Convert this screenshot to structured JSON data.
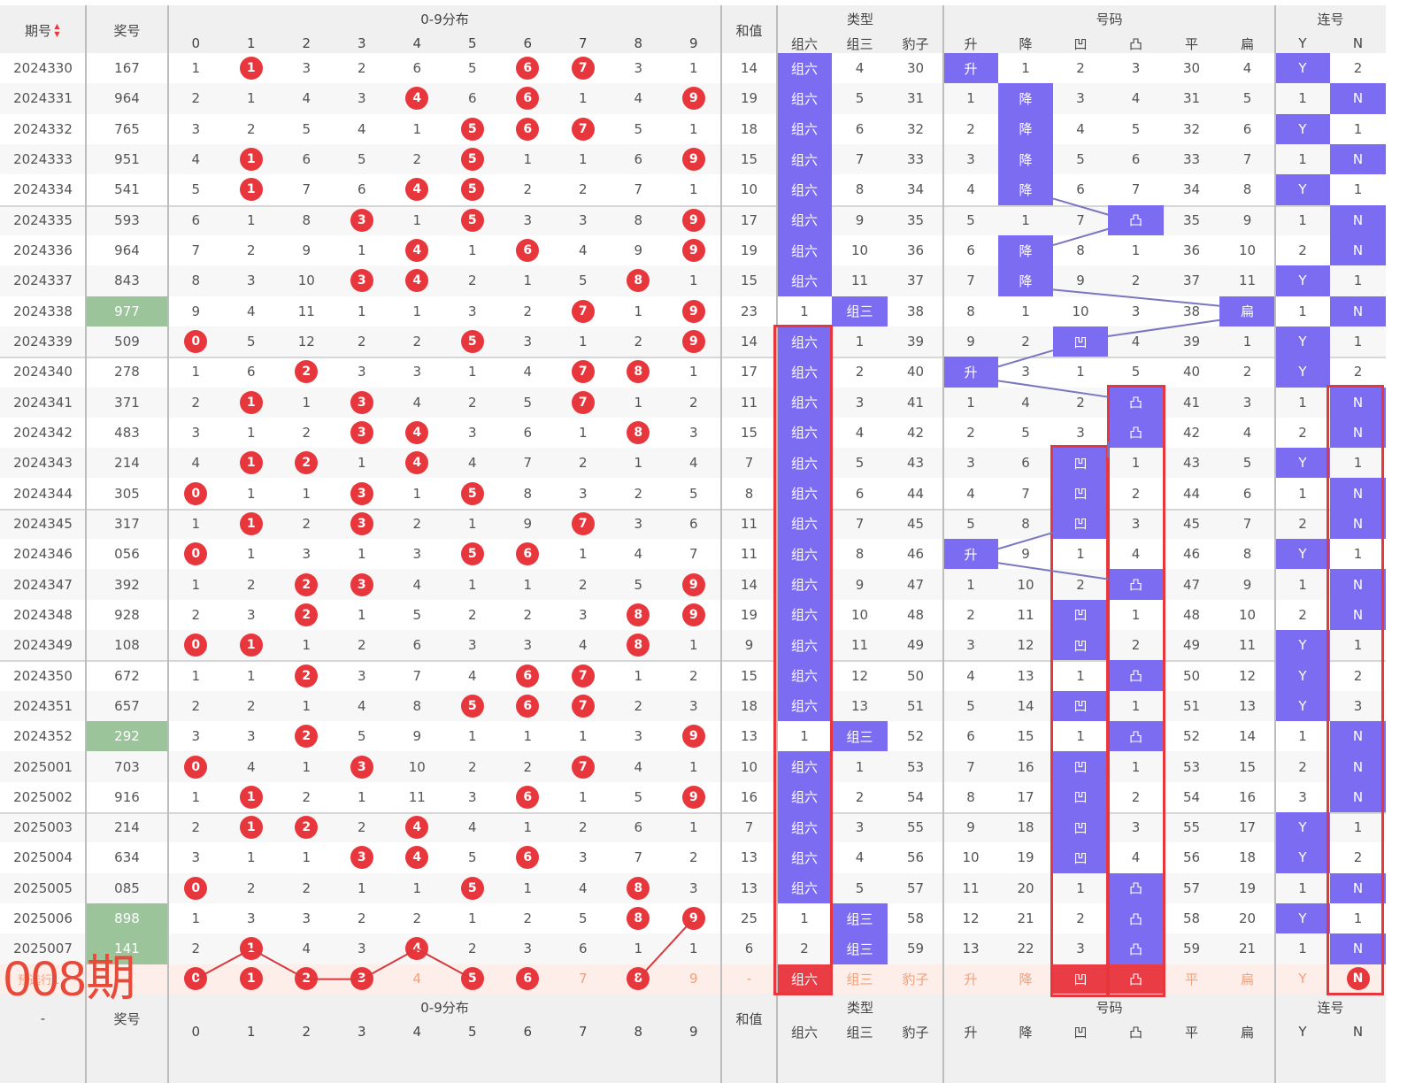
{
  "header": {
    "period": "期号",
    "prize": "奖号",
    "dist": "0-9分布",
    "sum": "和值",
    "type": "类型",
    "code": "号码",
    "consec": "连号",
    "digits": [
      "0",
      "1",
      "2",
      "3",
      "4",
      "5",
      "6",
      "7",
      "8",
      "9"
    ],
    "type_cols": [
      "组六",
      "组三",
      "豹子"
    ],
    "code_cols": [
      "升",
      "降",
      "凹",
      "凸",
      "平",
      "扁"
    ],
    "consec_cols": [
      "Y",
      "N"
    ]
  },
  "footer": {
    "period": "-",
    "prize": "奖号",
    "dist": "0-9分布",
    "sum": "和值",
    "type": "类型",
    "code": "号码",
    "consec": "连号"
  },
  "overlay_label": "008期",
  "forecast_row": {
    "label": "预选行1",
    "digits": [
      "0",
      "1",
      "2",
      "3",
      "4",
      "5",
      "6",
      "7",
      "8",
      "9"
    ],
    "digit_selected": [
      true,
      true,
      true,
      true,
      false,
      true,
      true,
      false,
      true,
      false
    ],
    "sum": "-",
    "type": [
      "组六",
      "组三",
      "豹子"
    ],
    "type_selected": [
      true,
      false,
      false
    ],
    "code": [
      "升",
      "降",
      "凹",
      "凸",
      "平",
      "扁"
    ],
    "code_selected": [
      false,
      false,
      true,
      true,
      false,
      false
    ],
    "consec": [
      "Y",
      "N"
    ],
    "consec_selected": [
      false,
      true
    ]
  },
  "colors": {
    "accent": "#7b6cf2",
    "ball": "#e8373c",
    "green": "#9bc49a",
    "redbox": "#e8373c"
  },
  "rows": [
    {
      "p": "2024330",
      "n": "167",
      "d": [
        "1",
        "1",
        "3",
        "2",
        "6",
        "5",
        "6",
        "7",
        "3",
        "1"
      ],
      "b": [
        1,
        6,
        7
      ],
      "s": "14",
      "t": [
        "组六",
        "4",
        "30"
      ],
      "th": 0,
      "c": [
        "升",
        "1",
        "2",
        "3",
        "30",
        "4"
      ],
      "ch": 0,
      "l": [
        "Y",
        "2"
      ],
      "lh": 0
    },
    {
      "p": "2024331",
      "n": "964",
      "d": [
        "2",
        "1",
        "4",
        "3",
        "4",
        "6",
        "6",
        "1",
        "4",
        "9"
      ],
      "b": [
        4,
        6,
        9
      ],
      "s": "19",
      "t": [
        "组六",
        "5",
        "31"
      ],
      "th": 0,
      "c": [
        "1",
        "降",
        "3",
        "4",
        "31",
        "5"
      ],
      "ch": 1,
      "l": [
        "1",
        "N"
      ],
      "lh": 1
    },
    {
      "p": "2024332",
      "n": "765",
      "d": [
        "3",
        "2",
        "5",
        "4",
        "1",
        "5",
        "6",
        "7",
        "5",
        "1"
      ],
      "b": [
        5,
        6,
        7
      ],
      "s": "18",
      "t": [
        "组六",
        "6",
        "32"
      ],
      "th": 0,
      "c": [
        "2",
        "降",
        "4",
        "5",
        "32",
        "6"
      ],
      "ch": 1,
      "l": [
        "Y",
        "1"
      ],
      "lh": 0
    },
    {
      "p": "2024333",
      "n": "951",
      "d": [
        "4",
        "1",
        "6",
        "5",
        "2",
        "5",
        "1",
        "1",
        "6",
        "9"
      ],
      "b": [
        1,
        5,
        9
      ],
      "s": "15",
      "t": [
        "组六",
        "7",
        "33"
      ],
      "th": 0,
      "c": [
        "3",
        "降",
        "5",
        "6",
        "33",
        "7"
      ],
      "ch": 1,
      "l": [
        "1",
        "N"
      ],
      "lh": 1
    },
    {
      "p": "2024334",
      "n": "541",
      "d": [
        "5",
        "1",
        "7",
        "6",
        "4",
        "5",
        "2",
        "2",
        "7",
        "1"
      ],
      "b": [
        1,
        4,
        5
      ],
      "s": "10",
      "t": [
        "组六",
        "8",
        "34"
      ],
      "th": 0,
      "c": [
        "4",
        "降",
        "6",
        "7",
        "34",
        "8"
      ],
      "ch": 1,
      "l": [
        "Y",
        "1"
      ],
      "lh": 0
    },
    {
      "p": "2024335",
      "n": "593",
      "d": [
        "6",
        "1",
        "8",
        "3",
        "1",
        "5",
        "3",
        "3",
        "8",
        "9"
      ],
      "b": [
        3,
        5,
        9
      ],
      "s": "17",
      "t": [
        "组六",
        "9",
        "35"
      ],
      "th": 0,
      "c": [
        "5",
        "1",
        "7",
        "凸",
        "35",
        "9"
      ],
      "ch": 3,
      "l": [
        "1",
        "N"
      ],
      "lh": 1
    },
    {
      "p": "2024336",
      "n": "964",
      "d": [
        "7",
        "2",
        "9",
        "1",
        "4",
        "1",
        "6",
        "4",
        "9",
        "9"
      ],
      "b": [
        4,
        6,
        9
      ],
      "s": "19",
      "t": [
        "组六",
        "10",
        "36"
      ],
      "th": 0,
      "c": [
        "6",
        "降",
        "8",
        "1",
        "36",
        "10"
      ],
      "ch": 1,
      "l": [
        "2",
        "N"
      ],
      "lh": 1
    },
    {
      "p": "2024337",
      "n": "843",
      "d": [
        "8",
        "3",
        "10",
        "3",
        "4",
        "2",
        "1",
        "5",
        "8",
        "1"
      ],
      "b": [
        3,
        4,
        8
      ],
      "s": "15",
      "t": [
        "组六",
        "11",
        "37"
      ],
      "th": 0,
      "c": [
        "7",
        "降",
        "9",
        "2",
        "37",
        "11"
      ],
      "ch": 1,
      "l": [
        "Y",
        "1"
      ],
      "lh": 0
    },
    {
      "p": "2024338",
      "n": "977",
      "g": 1,
      "d": [
        "9",
        "4",
        "11",
        "1",
        "1",
        "3",
        "2",
        "7",
        "1",
        "9"
      ],
      "b": [
        7,
        9
      ],
      "s": "23",
      "t": [
        "1",
        "组三",
        "38"
      ],
      "th": 1,
      "c": [
        "8",
        "1",
        "10",
        "3",
        "38",
        "扁"
      ],
      "ch": 5,
      "l": [
        "1",
        "N"
      ],
      "lh": 1
    },
    {
      "p": "2024339",
      "n": "509",
      "d": [
        "0",
        "5",
        "12",
        "2",
        "2",
        "5",
        "3",
        "1",
        "2",
        "9"
      ],
      "b": [
        0,
        5,
        9
      ],
      "s": "14",
      "t": [
        "组六",
        "1",
        "39"
      ],
      "th": 0,
      "c": [
        "9",
        "2",
        "凹",
        "4",
        "39",
        "1"
      ],
      "ch": 2,
      "l": [
        "Y",
        "1"
      ],
      "lh": 0
    },
    {
      "p": "2024340",
      "n": "278",
      "d": [
        "1",
        "6",
        "2",
        "3",
        "3",
        "1",
        "4",
        "7",
        "8",
        "1"
      ],
      "b": [
        2,
        7,
        8
      ],
      "s": "17",
      "t": [
        "组六",
        "2",
        "40"
      ],
      "th": 0,
      "c": [
        "升",
        "3",
        "1",
        "5",
        "40",
        "2"
      ],
      "ch": 0,
      "l": [
        "Y",
        "2"
      ],
      "lh": 0
    },
    {
      "p": "2024341",
      "n": "371",
      "d": [
        "2",
        "1",
        "1",
        "3",
        "4",
        "2",
        "5",
        "7",
        "1",
        "2"
      ],
      "b": [
        1,
        3,
        7
      ],
      "s": "11",
      "t": [
        "组六",
        "3",
        "41"
      ],
      "th": 0,
      "c": [
        "1",
        "4",
        "2",
        "凸",
        "41",
        "3"
      ],
      "ch": 3,
      "l": [
        "1",
        "N"
      ],
      "lh": 1
    },
    {
      "p": "2024342",
      "n": "483",
      "d": [
        "3",
        "1",
        "2",
        "3",
        "4",
        "3",
        "6",
        "1",
        "8",
        "3"
      ],
      "b": [
        3,
        4,
        8
      ],
      "s": "15",
      "t": [
        "组六",
        "4",
        "42"
      ],
      "th": 0,
      "c": [
        "2",
        "5",
        "3",
        "凸",
        "42",
        "4"
      ],
      "ch": 3,
      "l": [
        "2",
        "N"
      ],
      "lh": 1
    },
    {
      "p": "2024343",
      "n": "214",
      "d": [
        "4",
        "1",
        "2",
        "1",
        "4",
        "4",
        "7",
        "2",
        "1",
        "4"
      ],
      "b": [
        1,
        2,
        4
      ],
      "s": "7",
      "t": [
        "组六",
        "5",
        "43"
      ],
      "th": 0,
      "c": [
        "3",
        "6",
        "凹",
        "1",
        "43",
        "5"
      ],
      "ch": 2,
      "l": [
        "Y",
        "1"
      ],
      "lh": 0
    },
    {
      "p": "2024344",
      "n": "305",
      "d": [
        "0",
        "1",
        "1",
        "3",
        "1",
        "5",
        "8",
        "3",
        "2",
        "5"
      ],
      "b": [
        0,
        3,
        5
      ],
      "s": "8",
      "t": [
        "组六",
        "6",
        "44"
      ],
      "th": 0,
      "c": [
        "4",
        "7",
        "凹",
        "2",
        "44",
        "6"
      ],
      "ch": 2,
      "l": [
        "1",
        "N"
      ],
      "lh": 1
    },
    {
      "p": "2024345",
      "n": "317",
      "d": [
        "1",
        "1",
        "2",
        "3",
        "2",
        "1",
        "9",
        "7",
        "3",
        "6"
      ],
      "b": [
        1,
        3,
        7
      ],
      "s": "11",
      "t": [
        "组六",
        "7",
        "45"
      ],
      "th": 0,
      "c": [
        "5",
        "8",
        "凹",
        "3",
        "45",
        "7"
      ],
      "ch": 2,
      "l": [
        "2",
        "N"
      ],
      "lh": 1
    },
    {
      "p": "2024346",
      "n": "056",
      "d": [
        "0",
        "1",
        "3",
        "1",
        "3",
        "5",
        "6",
        "1",
        "4",
        "7"
      ],
      "b": [
        0,
        5,
        6
      ],
      "s": "11",
      "t": [
        "组六",
        "8",
        "46"
      ],
      "th": 0,
      "c": [
        "升",
        "9",
        "1",
        "4",
        "46",
        "8"
      ],
      "ch": 0,
      "l": [
        "Y",
        "1"
      ],
      "lh": 0
    },
    {
      "p": "2024347",
      "n": "392",
      "d": [
        "1",
        "2",
        "2",
        "3",
        "4",
        "1",
        "1",
        "2",
        "5",
        "9"
      ],
      "b": [
        2,
        3,
        9
      ],
      "s": "14",
      "t": [
        "组六",
        "9",
        "47"
      ],
      "th": 0,
      "c": [
        "1",
        "10",
        "2",
        "凸",
        "47",
        "9"
      ],
      "ch": 3,
      "l": [
        "1",
        "N"
      ],
      "lh": 1
    },
    {
      "p": "2024348",
      "n": "928",
      "d": [
        "2",
        "3",
        "2",
        "1",
        "5",
        "2",
        "2",
        "3",
        "8",
        "9"
      ],
      "b": [
        2,
        8,
        9
      ],
      "s": "19",
      "t": [
        "组六",
        "10",
        "48"
      ],
      "th": 0,
      "c": [
        "2",
        "11",
        "凹",
        "1",
        "48",
        "10"
      ],
      "ch": 2,
      "l": [
        "2",
        "N"
      ],
      "lh": 1
    },
    {
      "p": "2024349",
      "n": "108",
      "d": [
        "0",
        "1",
        "1",
        "2",
        "6",
        "3",
        "3",
        "4",
        "8",
        "1"
      ],
      "b": [
        0,
        1,
        8
      ],
      "s": "9",
      "t": [
        "组六",
        "11",
        "49"
      ],
      "th": 0,
      "c": [
        "3",
        "12",
        "凹",
        "2",
        "49",
        "11"
      ],
      "ch": 2,
      "l": [
        "Y",
        "1"
      ],
      "lh": 0
    },
    {
      "p": "2024350",
      "n": "672",
      "d": [
        "1",
        "1",
        "2",
        "3",
        "7",
        "4",
        "6",
        "7",
        "1",
        "2"
      ],
      "b": [
        2,
        6,
        7
      ],
      "s": "15",
      "t": [
        "组六",
        "12",
        "50"
      ],
      "th": 0,
      "c": [
        "4",
        "13",
        "1",
        "凸",
        "50",
        "12"
      ],
      "ch": 3,
      "l": [
        "Y",
        "2"
      ],
      "lh": 0
    },
    {
      "p": "2024351",
      "n": "657",
      "d": [
        "2",
        "2",
        "1",
        "4",
        "8",
        "5",
        "6",
        "7",
        "2",
        "3"
      ],
      "b": [
        5,
        6,
        7
      ],
      "s": "18",
      "t": [
        "组六",
        "13",
        "51"
      ],
      "th": 0,
      "c": [
        "5",
        "14",
        "凹",
        "1",
        "51",
        "13"
      ],
      "ch": 2,
      "l": [
        "Y",
        "3"
      ],
      "lh": 0
    },
    {
      "p": "2024352",
      "n": "292",
      "g": 1,
      "d": [
        "3",
        "3",
        "2",
        "5",
        "9",
        "1",
        "1",
        "1",
        "3",
        "9"
      ],
      "b": [
        2,
        9
      ],
      "s": "13",
      "t": [
        "1",
        "组三",
        "52"
      ],
      "th": 1,
      "c": [
        "6",
        "15",
        "1",
        "凸",
        "52",
        "14"
      ],
      "ch": 3,
      "l": [
        "1",
        "N"
      ],
      "lh": 1
    },
    {
      "p": "2025001",
      "n": "703",
      "d": [
        "0",
        "4",
        "1",
        "3",
        "10",
        "2",
        "2",
        "7",
        "4",
        "1"
      ],
      "b": [
        0,
        3,
        7
      ],
      "s": "10",
      "t": [
        "组六",
        "1",
        "53"
      ],
      "th": 0,
      "c": [
        "7",
        "16",
        "凹",
        "1",
        "53",
        "15"
      ],
      "ch": 2,
      "l": [
        "2",
        "N"
      ],
      "lh": 1
    },
    {
      "p": "2025002",
      "n": "916",
      "d": [
        "1",
        "1",
        "2",
        "1",
        "11",
        "3",
        "6",
        "1",
        "5",
        "9"
      ],
      "b": [
        1,
        6,
        9
      ],
      "s": "16",
      "t": [
        "组六",
        "2",
        "54"
      ],
      "th": 0,
      "c": [
        "8",
        "17",
        "凹",
        "2",
        "54",
        "16"
      ],
      "ch": 2,
      "l": [
        "3",
        "N"
      ],
      "lh": 1
    },
    {
      "p": "2025003",
      "n": "214",
      "d": [
        "2",
        "1",
        "2",
        "2",
        "4",
        "4",
        "1",
        "2",
        "6",
        "1"
      ],
      "b": [
        1,
        2,
        4
      ],
      "s": "7",
      "t": [
        "组六",
        "3",
        "55"
      ],
      "th": 0,
      "c": [
        "9",
        "18",
        "凹",
        "3",
        "55",
        "17"
      ],
      "ch": 2,
      "l": [
        "Y",
        "1"
      ],
      "lh": 0
    },
    {
      "p": "2025004",
      "n": "634",
      "d": [
        "3",
        "1",
        "1",
        "3",
        "4",
        "5",
        "6",
        "3",
        "7",
        "2"
      ],
      "b": [
        3,
        4,
        6
      ],
      "s": "13",
      "t": [
        "组六",
        "4",
        "56"
      ],
      "th": 0,
      "c": [
        "10",
        "19",
        "凹",
        "4",
        "56",
        "18"
      ],
      "ch": 2,
      "l": [
        "Y",
        "2"
      ],
      "lh": 0
    },
    {
      "p": "2025005",
      "n": "085",
      "d": [
        "0",
        "2",
        "2",
        "1",
        "1",
        "5",
        "1",
        "4",
        "8",
        "3"
      ],
      "b": [
        0,
        5,
        8
      ],
      "s": "13",
      "t": [
        "组六",
        "5",
        "57"
      ],
      "th": 0,
      "c": [
        "11",
        "20",
        "1",
        "凸",
        "57",
        "19"
      ],
      "ch": 3,
      "l": [
        "1",
        "N"
      ],
      "lh": 1
    },
    {
      "p": "2025006",
      "n": "898",
      "g": 1,
      "d": [
        "1",
        "3",
        "3",
        "2",
        "2",
        "1",
        "2",
        "5",
        "8",
        "9"
      ],
      "b": [
        8,
        9
      ],
      "s": "25",
      "t": [
        "1",
        "组三",
        "58"
      ],
      "th": 1,
      "c": [
        "12",
        "21",
        "2",
        "凸",
        "58",
        "20"
      ],
      "ch": 3,
      "l": [
        "Y",
        "1"
      ],
      "lh": 0
    },
    {
      "p": "2025007",
      "n": "141",
      "g": 1,
      "d": [
        "2",
        "1",
        "4",
        "3",
        "4",
        "2",
        "3",
        "6",
        "1",
        "1"
      ],
      "b": [
        1,
        4
      ],
      "s": "6",
      "t": [
        "2",
        "组三",
        "59"
      ],
      "th": 1,
      "c": [
        "13",
        "22",
        "3",
        "凸",
        "59",
        "21"
      ],
      "ch": 3,
      "l": [
        "1",
        "N"
      ],
      "lh": 1
    }
  ]
}
